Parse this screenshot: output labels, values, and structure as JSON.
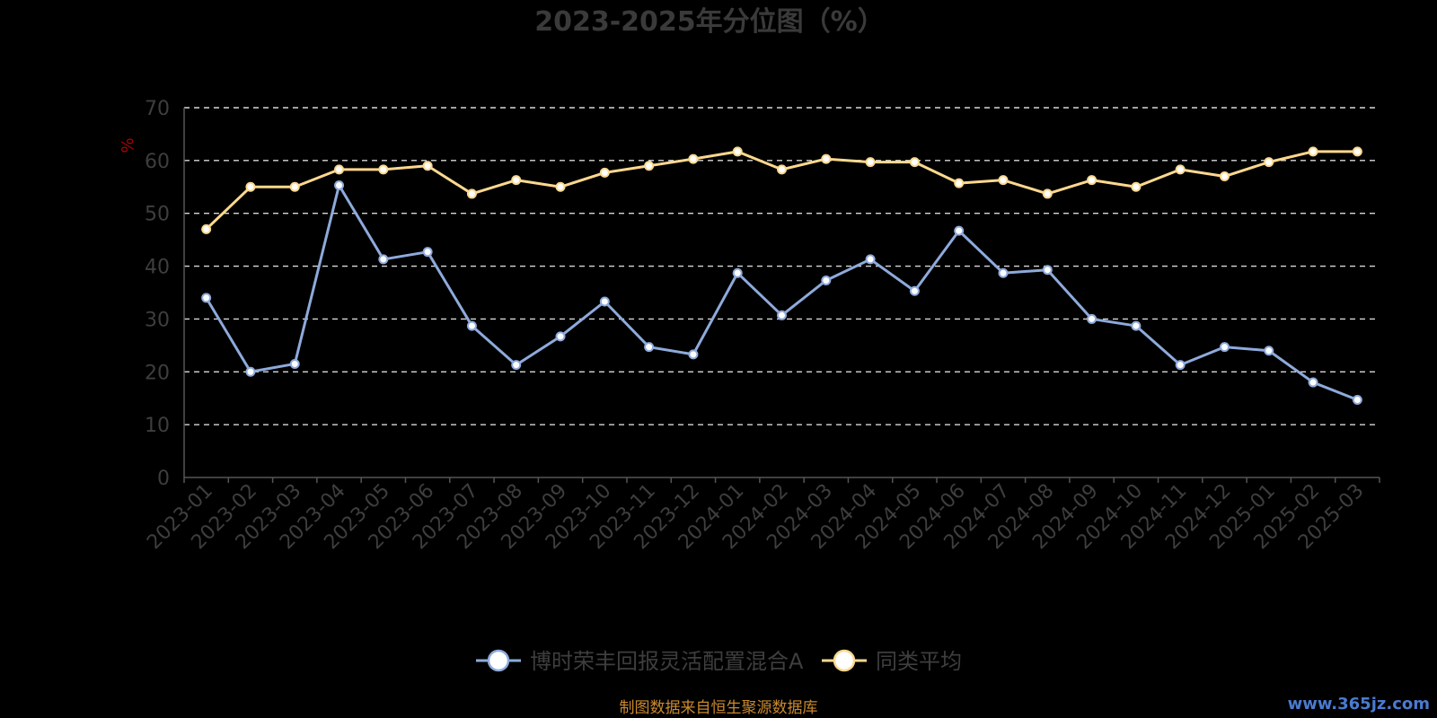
{
  "chart_data": {
    "type": "line",
    "title": "2023-2025年分位图（%）",
    "ylabel": "%",
    "ylim": [
      0,
      70
    ],
    "yticks": [
      0,
      10,
      20,
      30,
      40,
      50,
      60,
      70
    ],
    "grid": true,
    "legend_position": "bottom-center",
    "categories": [
      "2023-01",
      "2023-02",
      "2023-03",
      "2023-04",
      "2023-05",
      "2023-06",
      "2023-07",
      "2023-08",
      "2023-09",
      "2023-10",
      "2023-11",
      "2023-12",
      "2024-01",
      "2024-02",
      "2024-03",
      "2024-04",
      "2024-05",
      "2024-06",
      "2024-07",
      "2024-08",
      "2024-09",
      "2024-10",
      "2024-11",
      "2024-12",
      "2025-01",
      "2025-02",
      "2025-03"
    ],
    "series": [
      {
        "name": "博时荣丰回报灵活配置混合A",
        "color": "#8eaadb",
        "values": [
          34,
          20,
          21.5,
          55.3,
          41.3,
          42.7,
          28.7,
          21.3,
          26.7,
          33.3,
          24.7,
          23.3,
          38.7,
          30.7,
          37.3,
          41.3,
          35.3,
          46.7,
          38.7,
          39.3,
          30,
          28.7,
          21.3,
          24.7,
          24,
          18,
          14.7
        ]
      },
      {
        "name": "同类平均",
        "color": "#fcd88e",
        "values": [
          47,
          55,
          55,
          58.3,
          58.3,
          59,
          53.7,
          56.3,
          55,
          57.7,
          59,
          60.3,
          61.7,
          58.3,
          60.3,
          59.7,
          59.7,
          55.7,
          56.3,
          53.7,
          56.3,
          55,
          58.3,
          57,
          59.7,
          61.7,
          61.7
        ]
      }
    ]
  },
  "footer": {
    "source": "制图数据来自恒生聚源数据库",
    "watermark": "www.365jz.com"
  }
}
